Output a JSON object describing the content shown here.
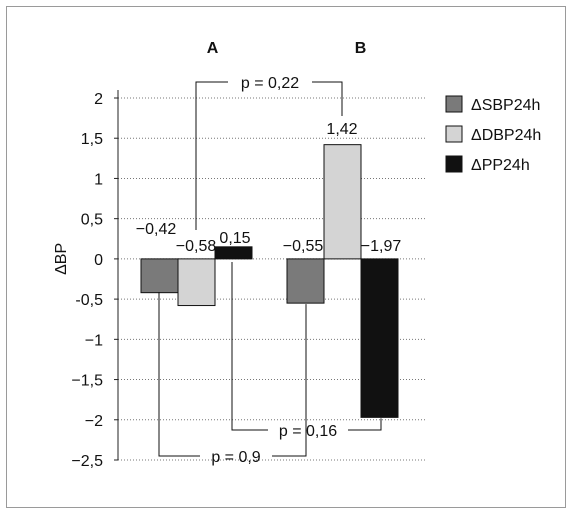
{
  "chart_data": {
    "type": "bar",
    "categories": [
      "A",
      "B"
    ],
    "ylabel": "ΔBP",
    "ylim": [
      -2.5,
      2
    ],
    "yticks": [
      2,
      1.5,
      1,
      0.5,
      0,
      -0.5,
      -1,
      -1.5,
      -2,
      -2.5
    ],
    "ytick_labels": [
      "2",
      "1,5",
      "1",
      "0,5",
      "0",
      "-0,5",
      "−1",
      "−1,5",
      "−2",
      "−2,5"
    ],
    "grid": "horizontal dotted",
    "legend_position": "top-right",
    "series": [
      {
        "name": "ΔSBP24h",
        "color": "#7a7a7a",
        "values": [
          -0.42,
          -0.55
        ],
        "labels": [
          "−0,42",
          "−0,55"
        ]
      },
      {
        "name": "ΔDBP24h",
        "color": "#d4d4d4",
        "values": [
          -0.58,
          1.42
        ],
        "labels": [
          "−0,58",
          "1,42"
        ]
      },
      {
        "name": "ΔPP24h",
        "color": "#111111",
        "values": [
          0.15,
          -1.97
        ],
        "labels": [
          "0,15",
          "−1,97"
        ]
      }
    ],
    "annotations": [
      {
        "text": "p = 0,22",
        "compares": "ΔDBP24h A vs B"
      },
      {
        "text": "p = 0,16",
        "compares": "ΔPP24h A vs B"
      },
      {
        "text": "p = 0,9",
        "compares": "ΔSBP24h A vs B"
      }
    ]
  }
}
